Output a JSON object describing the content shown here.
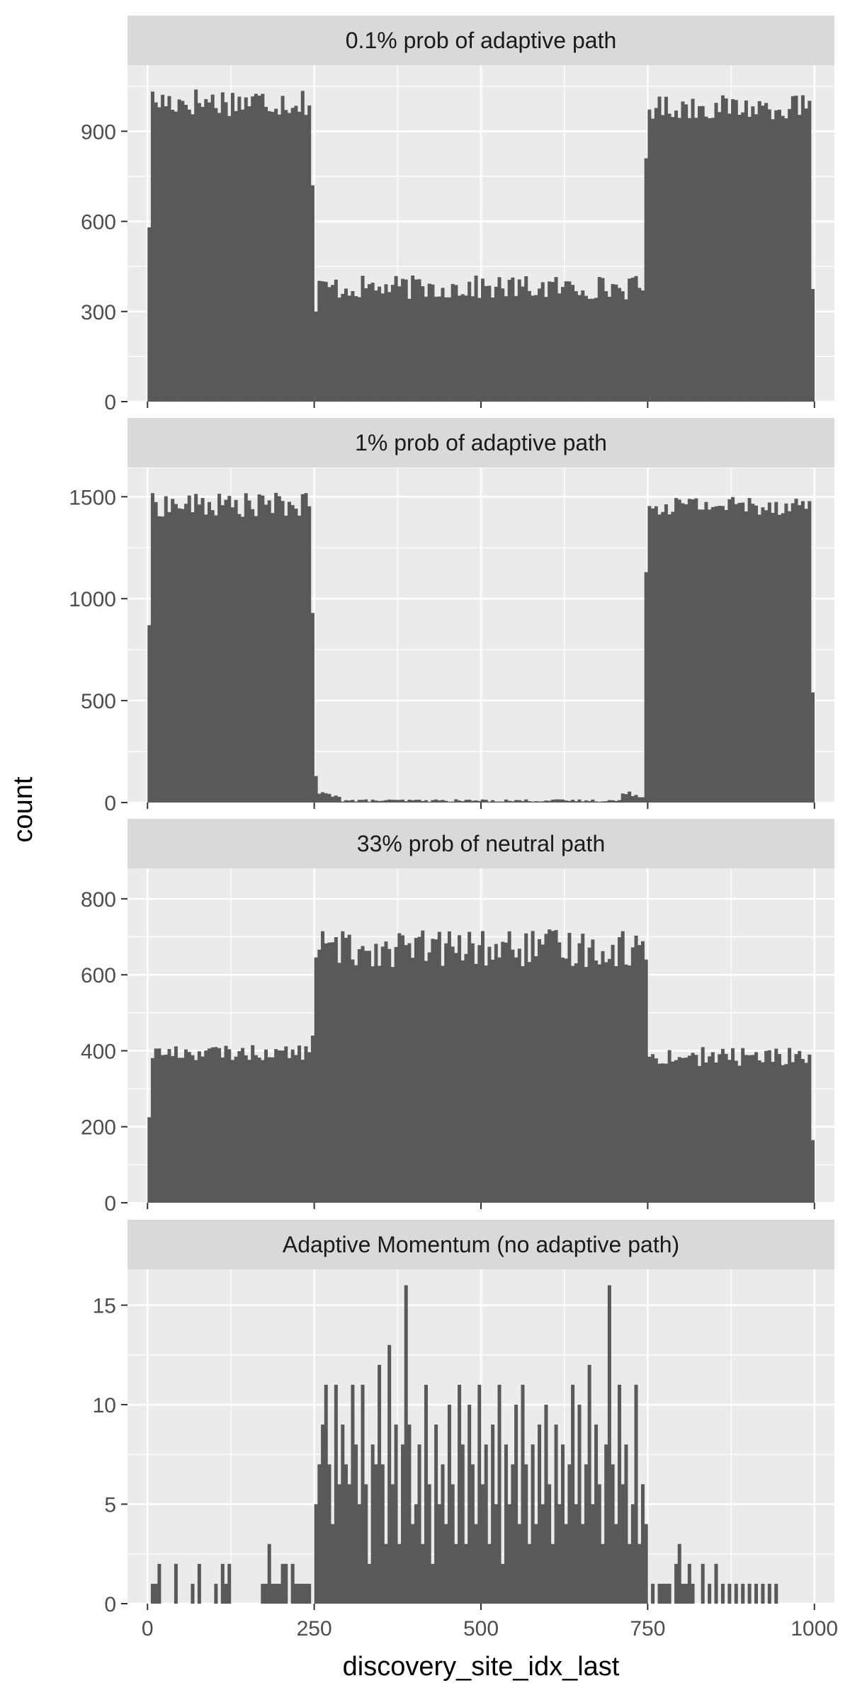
{
  "chart_data": {
    "type": "bar",
    "subtype": "faceted-histogram",
    "xlabel": "discovery_site_idx_last",
    "ylabel": "count",
    "xlim": [
      -30,
      1030
    ],
    "x_ticks": [
      0,
      250,
      500,
      750,
      1000
    ],
    "grid": true,
    "bar_color": "#595959",
    "panel_bg": "#ebebeb",
    "strip_bg": "#d9d9d9",
    "grid_color": "#ffffff",
    "facets": [
      {
        "title": "0.1% prob of adaptive path",
        "ylim": [
          0,
          1120
        ],
        "y_ticks": [
          0,
          300,
          600,
          900
        ],
        "segments": [
          {
            "x": [
              0,
              5
            ],
            "level": 580,
            "noise": 0
          },
          {
            "x": [
              5,
              245
            ],
            "level": 1000,
            "noise": 50
          },
          {
            "x": [
              245,
              250
            ],
            "level": 720,
            "noise": 0
          },
          {
            "x": [
              250,
              255
            ],
            "level": 300,
            "noise": 0
          },
          {
            "x": [
              255,
              745
            ],
            "level": 380,
            "noise": 40
          },
          {
            "x": [
              745,
              750
            ],
            "level": 810,
            "noise": 0
          },
          {
            "x": [
              750,
              995
            ],
            "level": 980,
            "noise": 40
          },
          {
            "x": [
              995,
              1000
            ],
            "level": 375,
            "noise": 0
          }
        ]
      },
      {
        "title": "1% prob of adaptive path",
        "ylim": [
          0,
          1640
        ],
        "y_ticks": [
          0,
          500,
          1000,
          1500
        ],
        "segments": [
          {
            "x": [
              0,
              5
            ],
            "level": 870,
            "noise": 0
          },
          {
            "x": [
              5,
              245
            ],
            "level": 1460,
            "noise": 60
          },
          {
            "x": [
              245,
              250
            ],
            "level": 930,
            "noise": 0
          },
          {
            "x": [
              250,
              255
            ],
            "level": 130,
            "noise": 0
          },
          {
            "x": [
              255,
              290
            ],
            "level": 40,
            "noise": 15
          },
          {
            "x": [
              290,
              710
            ],
            "level": 10,
            "noise": 6
          },
          {
            "x": [
              710,
              745
            ],
            "level": 40,
            "noise": 15
          },
          {
            "x": [
              745,
              750
            ],
            "level": 1130,
            "noise": 0
          },
          {
            "x": [
              750,
              995
            ],
            "level": 1460,
            "noise": 50
          },
          {
            "x": [
              995,
              1000
            ],
            "level": 540,
            "noise": 0
          }
        ]
      },
      {
        "title": "33% prob of neutral path",
        "ylim": [
          0,
          880
        ],
        "y_ticks": [
          0,
          200,
          400,
          600,
          800
        ],
        "segments": [
          {
            "x": [
              0,
              5
            ],
            "level": 225,
            "noise": 0
          },
          {
            "x": [
              5,
              245
            ],
            "level": 395,
            "noise": 20
          },
          {
            "x": [
              245,
              250
            ],
            "level": 440,
            "noise": 0
          },
          {
            "x": [
              250,
              745
            ],
            "level": 670,
            "noise": 50
          },
          {
            "x": [
              745,
              750
            ],
            "level": 640,
            "noise": 0
          },
          {
            "x": [
              750,
              995
            ],
            "level": 385,
            "noise": 25
          },
          {
            "x": [
              995,
              1000
            ],
            "level": 165,
            "noise": 0
          }
        ]
      },
      {
        "title": "Adaptive Momentum (no adaptive path)",
        "ylim": [
          0,
          16.8
        ],
        "y_ticks": [
          0,
          5,
          10,
          15
        ],
        "points": [
          [
            5,
            1
          ],
          [
            10,
            1
          ],
          [
            15,
            2
          ],
          [
            40,
            2
          ],
          [
            65,
            1
          ],
          [
            75,
            2
          ],
          [
            100,
            1
          ],
          [
            110,
            2
          ],
          [
            115,
            1
          ],
          [
            120,
            2
          ],
          [
            170,
            1
          ],
          [
            175,
            1
          ],
          [
            180,
            3
          ],
          [
            185,
            1
          ],
          [
            190,
            1
          ],
          [
            195,
            1
          ],
          [
            200,
            2
          ],
          [
            205,
            2
          ],
          [
            215,
            2
          ],
          [
            220,
            1
          ],
          [
            225,
            1
          ],
          [
            230,
            1
          ],
          [
            235,
            1
          ],
          [
            240,
            1
          ],
          [
            250,
            5
          ],
          [
            255,
            7
          ],
          [
            260,
            9
          ],
          [
            265,
            11
          ],
          [
            270,
            7
          ],
          [
            275,
            4
          ],
          [
            280,
            11
          ],
          [
            285,
            6
          ],
          [
            290,
            9
          ],
          [
            295,
            7
          ],
          [
            300,
            6
          ],
          [
            305,
            11
          ],
          [
            310,
            8
          ],
          [
            315,
            5
          ],
          [
            320,
            11
          ],
          [
            325,
            6
          ],
          [
            330,
            2
          ],
          [
            335,
            8
          ],
          [
            340,
            7
          ],
          [
            345,
            12
          ],
          [
            350,
            7
          ],
          [
            355,
            3
          ],
          [
            360,
            13
          ],
          [
            365,
            6
          ],
          [
            370,
            9
          ],
          [
            375,
            3
          ],
          [
            380,
            8
          ],
          [
            385,
            16
          ],
          [
            390,
            9
          ],
          [
            395,
            4
          ],
          [
            400,
            5
          ],
          [
            405,
            8
          ],
          [
            410,
            3
          ],
          [
            415,
            11
          ],
          [
            420,
            6
          ],
          [
            425,
            2
          ],
          [
            430,
            9
          ],
          [
            435,
            5
          ],
          [
            440,
            7
          ],
          [
            445,
            4
          ],
          [
            450,
            10
          ],
          [
            455,
            6
          ],
          [
            460,
            3
          ],
          [
            465,
            11
          ],
          [
            470,
            8
          ],
          [
            475,
            3
          ],
          [
            480,
            10
          ],
          [
            485,
            7
          ],
          [
            490,
            4
          ],
          [
            495,
            11
          ],
          [
            500,
            6
          ],
          [
            505,
            8
          ],
          [
            510,
            3
          ],
          [
            515,
            9
          ],
          [
            520,
            5
          ],
          [
            525,
            11
          ],
          [
            530,
            2
          ],
          [
            535,
            8
          ],
          [
            540,
            5
          ],
          [
            545,
            7
          ],
          [
            550,
            10
          ],
          [
            555,
            4
          ],
          [
            560,
            11
          ],
          [
            565,
            7
          ],
          [
            570,
            3
          ],
          [
            575,
            8
          ],
          [
            580,
            4
          ],
          [
            585,
            9
          ],
          [
            590,
            5
          ],
          [
            595,
            10
          ],
          [
            600,
            6
          ],
          [
            605,
            3
          ],
          [
            610,
            9
          ],
          [
            615,
            5
          ],
          [
            620,
            8
          ],
          [
            625,
            4
          ],
          [
            630,
            7
          ],
          [
            635,
            11
          ],
          [
            640,
            5
          ],
          [
            645,
            10
          ],
          [
            650,
            4
          ],
          [
            655,
            7
          ],
          [
            660,
            12
          ],
          [
            665,
            5
          ],
          [
            670,
            9
          ],
          [
            675,
            6
          ],
          [
            680,
            3
          ],
          [
            685,
            8
          ],
          [
            690,
            16
          ],
          [
            695,
            7
          ],
          [
            700,
            4
          ],
          [
            705,
            11
          ],
          [
            710,
            6
          ],
          [
            715,
            8
          ],
          [
            720,
            3
          ],
          [
            725,
            5
          ],
          [
            730,
            11
          ],
          [
            735,
            3
          ],
          [
            740,
            6
          ],
          [
            745,
            4
          ],
          [
            755,
            1
          ],
          [
            765,
            1
          ],
          [
            770,
            1
          ],
          [
            775,
            1
          ],
          [
            780,
            1
          ],
          [
            790,
            2
          ],
          [
            795,
            3
          ],
          [
            800,
            1
          ],
          [
            805,
            1
          ],
          [
            810,
            2
          ],
          [
            815,
            1
          ],
          [
            830,
            2
          ],
          [
            840,
            1
          ],
          [
            850,
            2
          ],
          [
            860,
            1
          ],
          [
            870,
            1
          ],
          [
            880,
            1
          ],
          [
            890,
            1
          ],
          [
            900,
            1
          ],
          [
            910,
            1
          ],
          [
            920,
            1
          ],
          [
            930,
            1
          ],
          [
            940,
            1
          ]
        ]
      }
    ]
  }
}
